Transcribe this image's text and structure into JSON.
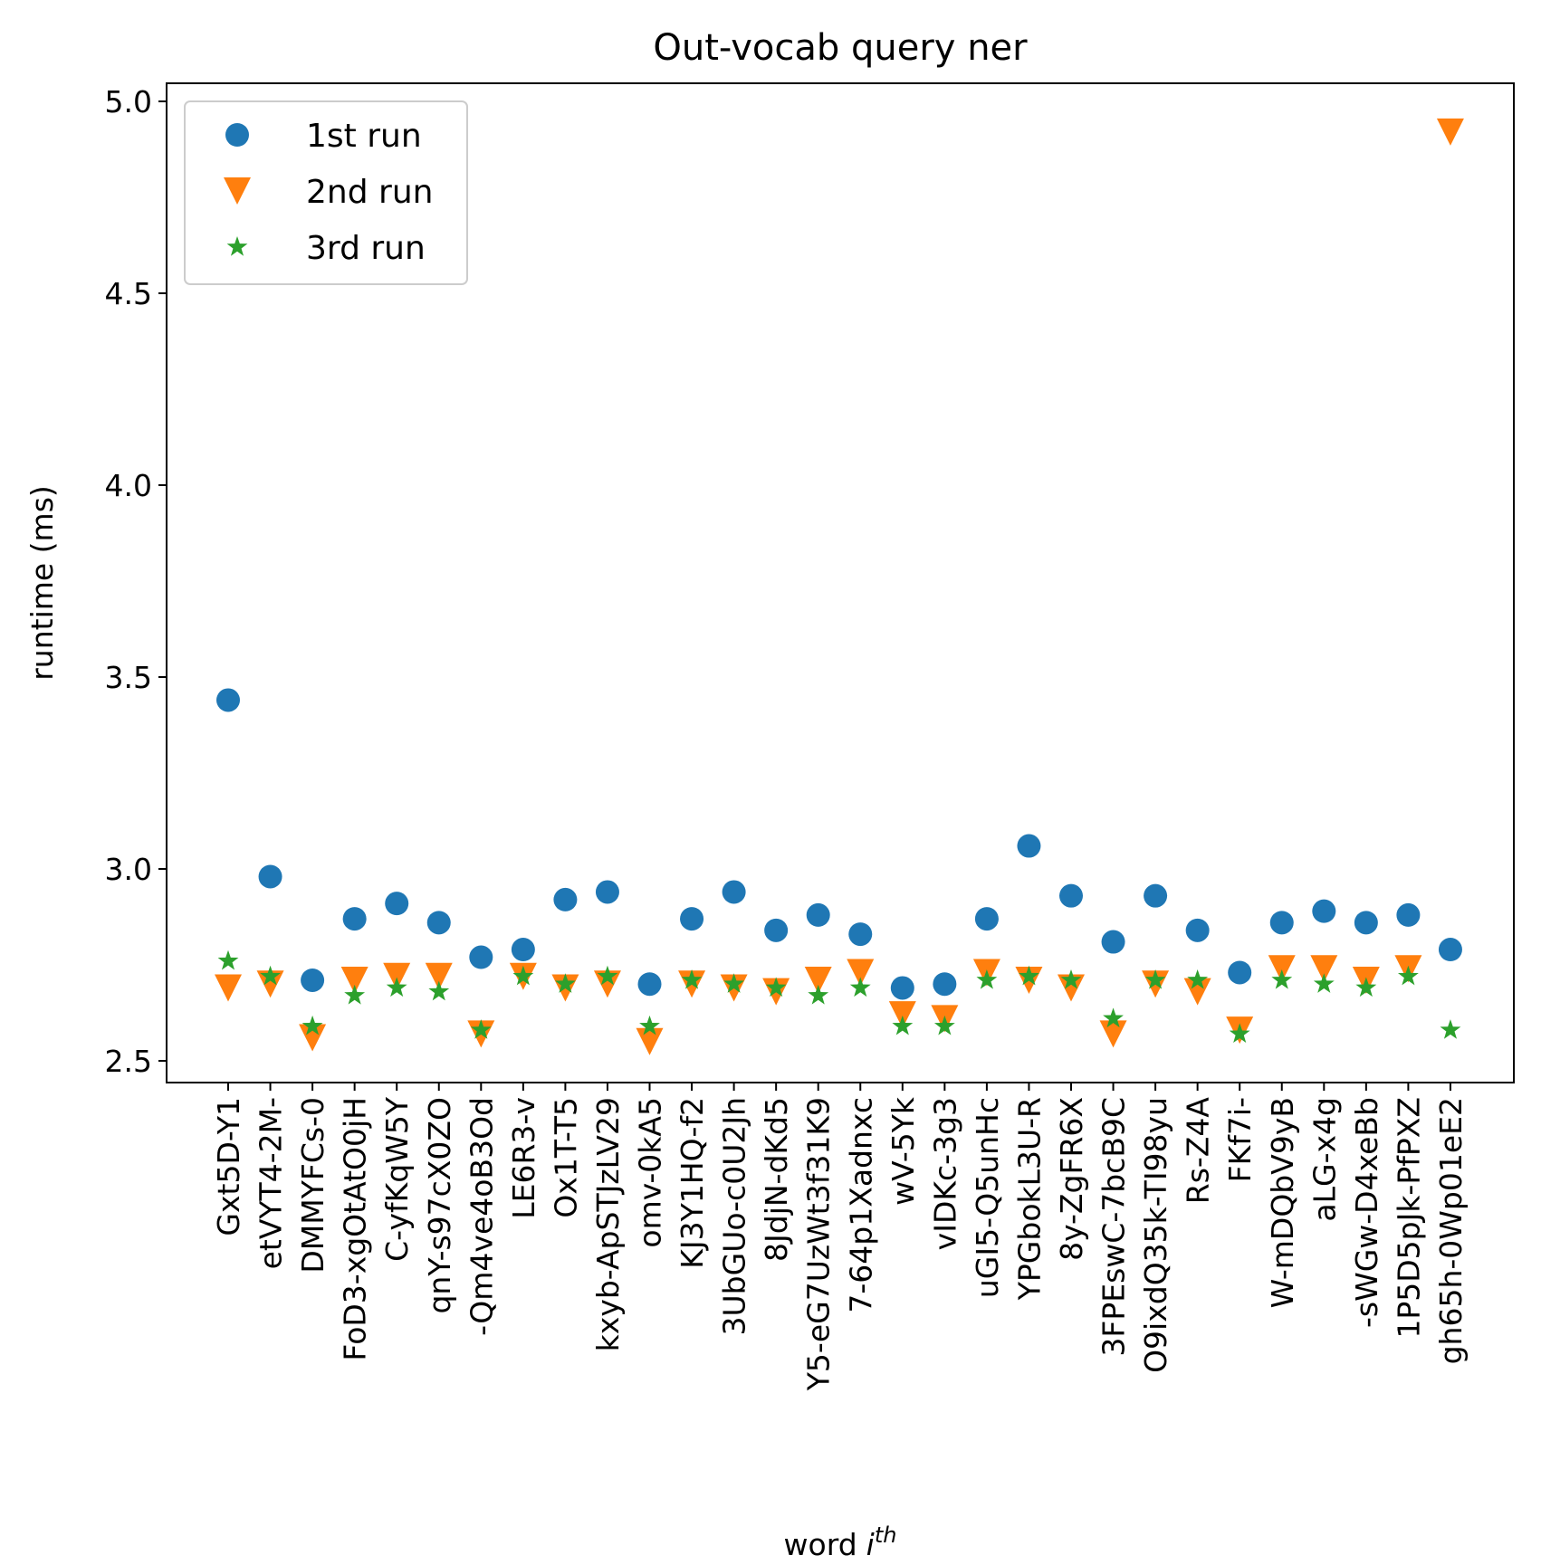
{
  "chart_data": {
    "type": "scatter",
    "title": "Out-vocab query ner",
    "xlabel": "word",
    "xlabel_italic": "i",
    "xlabel_superscript": "th",
    "ylabel": "runtime (ms)",
    "ylim": [
      2.44,
      5.04
    ],
    "yticks": [
      "2.5",
      "3.0",
      "3.5",
      "4.0",
      "4.5",
      "5.0"
    ],
    "legend_position": "top-left",
    "categories": [
      "Gxt5D-Y1",
      "etVYT4-2M-",
      "DMMYFCs-0",
      "FoD3-xgOtAtO0jH",
      "C-yfKqW5Y",
      "qnY-s97cX0ZO",
      "-Qm4ve4oB3Od",
      "LE6R3-v",
      "Ox1T-T5",
      "kxyb-ApSTJzLV29",
      "omv-0kA5",
      "KJ3Y1HQ-f2",
      "3UbGUo-c0U2Jh",
      "8JdjN-dKd5",
      "Y5-eG7UzWt3f31K9",
      "7-64p1Xadnxc",
      "wV-5Yk",
      "vIDKc-3g3",
      "uGI5-Q5unHc",
      "YPGbokL3U-R",
      "8y-ZgFR6X",
      "3FPEswC-7bcB9C",
      "O9ixdQ35k-TI98yu",
      "Rs-Z4A",
      "FKf7i-",
      "W-mDQbV9yB",
      "aLG-x4g",
      "-sWGw-D4xeBb",
      "1P5D5pJk-PfPXZ",
      "gh65h-0Wp01eE2"
    ],
    "series": [
      {
        "name": "1st run",
        "marker": "circle",
        "color": "#1f77b4",
        "values": [
          3.44,
          2.98,
          2.71,
          2.87,
          2.91,
          2.86,
          2.77,
          2.79,
          2.92,
          2.94,
          2.7,
          2.87,
          2.94,
          2.84,
          2.88,
          2.83,
          2.69,
          2.7,
          2.87,
          3.06,
          2.93,
          2.81,
          2.93,
          2.84,
          2.73,
          2.86,
          2.89,
          2.86,
          2.88,
          2.79
        ]
      },
      {
        "name": "2nd run",
        "marker": "triangle-down",
        "color": "#ff7f0e",
        "values": [
          2.69,
          2.7,
          2.56,
          2.71,
          2.72,
          2.72,
          2.57,
          2.72,
          2.69,
          2.7,
          2.55,
          2.7,
          2.69,
          2.68,
          2.71,
          2.73,
          2.62,
          2.61,
          2.73,
          2.71,
          2.69,
          2.57,
          2.7,
          2.68,
          2.58,
          2.74,
          2.74,
          2.71,
          2.74,
          4.92
        ]
      },
      {
        "name": "3rd run",
        "marker": "star",
        "color": "#2ca02c",
        "values": [
          2.76,
          2.72,
          2.59,
          2.67,
          2.69,
          2.68,
          2.58,
          2.72,
          2.7,
          2.72,
          2.59,
          2.71,
          2.7,
          2.69,
          2.67,
          2.69,
          2.59,
          2.59,
          2.71,
          2.72,
          2.71,
          2.61,
          2.71,
          2.71,
          2.57,
          2.71,
          2.7,
          2.69,
          2.72,
          2.58
        ]
      }
    ]
  }
}
